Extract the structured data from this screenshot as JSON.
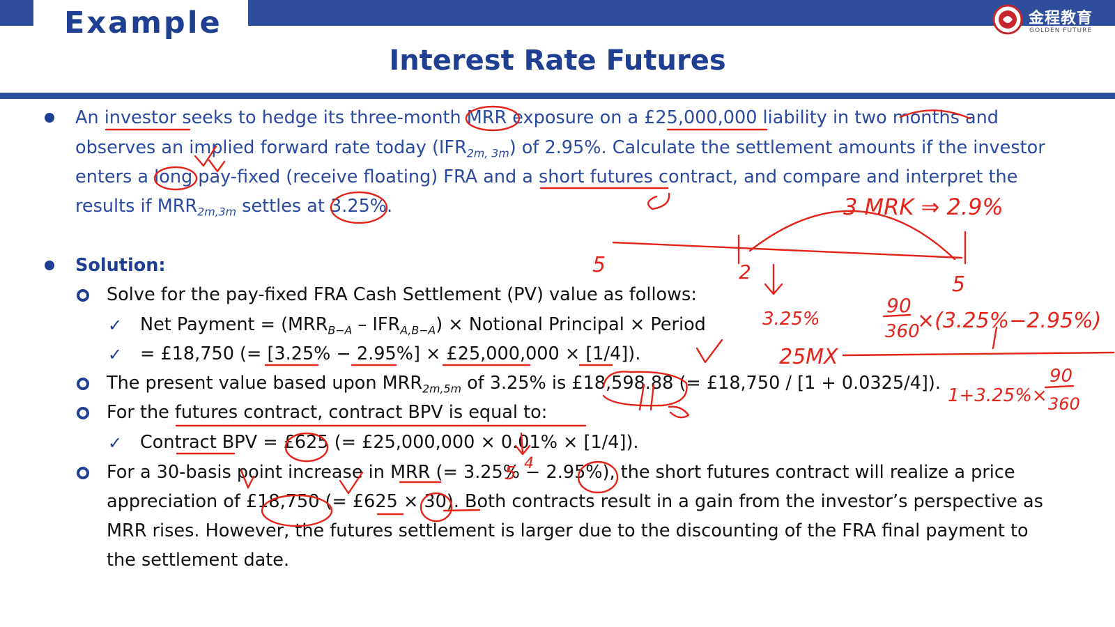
{
  "header": {
    "section_title": "Example",
    "title": "Interest Rate Futures",
    "logo_cn": "金程教育",
    "logo_en": "GOLDEN FUTURE"
  },
  "question": {
    "l1_a": "An investor seeks to hedge its three-month MRR exposure on a £25,000,000 liability in two months and",
    "l2_a": "observes an implied forward rate today (IFR",
    "l2_sub": "2m, 3m",
    "l2_b": ") of 2.95%. Calculate the settlement amounts if the investor",
    "l3_a": "enters a long pay-fixed (receive floating) FRA and a short futures contract, and compare and interpret the",
    "l4_a": "results if MRR",
    "l4_sub": "2m,3m",
    "l4_b": " settles at 3.25%."
  },
  "solution": {
    "heading": "Solution:",
    "p1": "Solve for the pay-fixed FRA Cash Settlement (PV) value as follows:",
    "c1_a": "Net Payment = (MRR",
    "c1_sub1": "B−A",
    "c1_b": " – IFR",
    "c1_sub2": "A,B−A",
    "c1_c": ") × Notional Principal × Period",
    "c2": "= £18,750 (= [3.25% − 2.95%] × £25,000,000 × [1/4]).",
    "p2_a": "The present value based upon MRR",
    "p2_sub": "2m,5m",
    "p2_b": " of 3.25% is  £18,598.88 (= £18,750 / [1 + 0.0325/4]).",
    "p3": "For the futures contract, contract BPV is equal to:",
    "c3": "Contract BPV = £625 (= £25,000,000 × 0.01% × [1/4]).",
    "p4_l1": "For a 30-basis point increase in MRR (= 3.25% − 2.95%), the short futures contract will realize a price",
    "p4_l2": "appreciation of £18,750 (= £625 × 30). Both contracts result in a gain from the investor’s perspective as",
    "p4_l3": "MRR rises. However, the futures settlement is larger due to the discounting of the FRA final payment to",
    "p4_l4": "the settlement date."
  },
  "icons": {
    "bullet": "filled-circle-bullet",
    "sub_bullet": "ring-bullet",
    "check": "check-mark"
  },
  "colors": {
    "brand_blue": "#2e4d9c",
    "text_blue": "#2a4aa0",
    "ink_red": "#e3241b"
  }
}
